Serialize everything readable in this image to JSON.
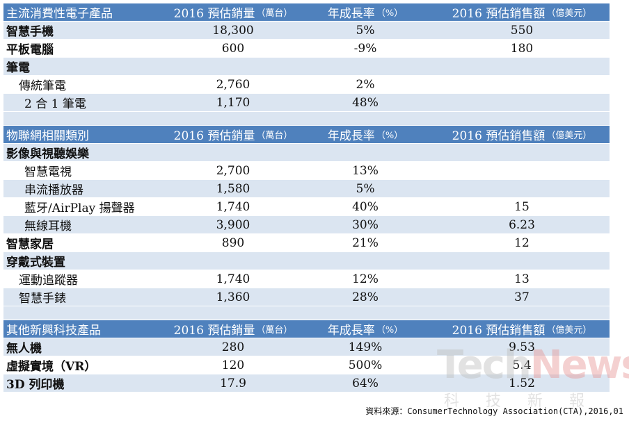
{
  "sections": [
    {
      "header": {
        "c0": "主流消費性電子產品",
        "c1": "2016 預估銷量",
        "c1_unit": "（萬台）",
        "c2": "年成長率",
        "c2_unit": "（%）",
        "c3": "2016 預估銷售額",
        "c3_unit": "（億美元）"
      },
      "rows": [
        {
          "c0": "智慧手機",
          "c1": "18,300",
          "c2": "5%",
          "c3": "550"
        },
        {
          "c0": "平板電腦",
          "c1": "600",
          "c2": "-9%",
          "c3": "180"
        },
        {
          "c0": "筆電",
          "c1": "",
          "c2": "",
          "c3": ""
        },
        {
          "c0": "傳統筆電",
          "c1": "2,760",
          "c2": "2%",
          "c3": ""
        },
        {
          "c0": "2 合 1 筆電",
          "c1": "1,170",
          "c2": "48%",
          "c3": ""
        }
      ]
    },
    {
      "header": {
        "c0": "物聯網相關類別",
        "c1": "2016 預估銷量",
        "c1_unit": "（萬台）",
        "c2": "年成長率",
        "c2_unit": "（%）",
        "c3": "2016 預估銷售額",
        "c3_unit": "（億美元）"
      },
      "rows": [
        {
          "c0": "影像與視聽娛樂",
          "c1": "",
          "c2": "",
          "c3": ""
        },
        {
          "c0": "智慧電視",
          "c1": "2,700",
          "c2": "13%",
          "c3": ""
        },
        {
          "c0": "串流播放器",
          "c1": "1,580",
          "c2": "5%",
          "c3": ""
        },
        {
          "c0": "藍牙/AirPlay 揚聲器",
          "c1": "1,740",
          "c2": "40%",
          "c3": "15"
        },
        {
          "c0": "無線耳機",
          "c1": "3,900",
          "c2": "30%",
          "c3": "6.23"
        },
        {
          "c0": "智慧家居",
          "c1": "890",
          "c2": "21%",
          "c3": "12"
        },
        {
          "c0": "穿戴式裝置",
          "c1": "",
          "c2": "",
          "c3": ""
        },
        {
          "c0": "運動追蹤器",
          "c1": "1,740",
          "c2": "12%",
          "c3": "13"
        },
        {
          "c0": "智慧手錶",
          "c1": "1,360",
          "c2": "28%",
          "c3": "37"
        }
      ]
    },
    {
      "header": {
        "c0": "其他新興科技產品",
        "c1": "2016 預估銷量",
        "c1_unit": "（萬台）",
        "c2": "年成長率",
        "c2_unit": "（%）",
        "c3": "2016 預估銷售額",
        "c3_unit": "（億美元）"
      },
      "rows": [
        {
          "c0": "無人機",
          "c1": "280",
          "c2": "149%",
          "c3": "9.53"
        },
        {
          "c0": "虛擬實境（VR）",
          "c1": "120",
          "c2": "500%",
          "c3": "5.4"
        },
        {
          "c0": "3D 列印機",
          "c1": "17.9",
          "c2": "64%",
          "c3": "1.52"
        }
      ]
    }
  ],
  "source": "資料來源：ConsumerTechnology Association(CTA),2016,01",
  "watermark": {
    "logo_part1": "Tech",
    "logo_part2": "News",
    "subtitle": "科技新報"
  }
}
